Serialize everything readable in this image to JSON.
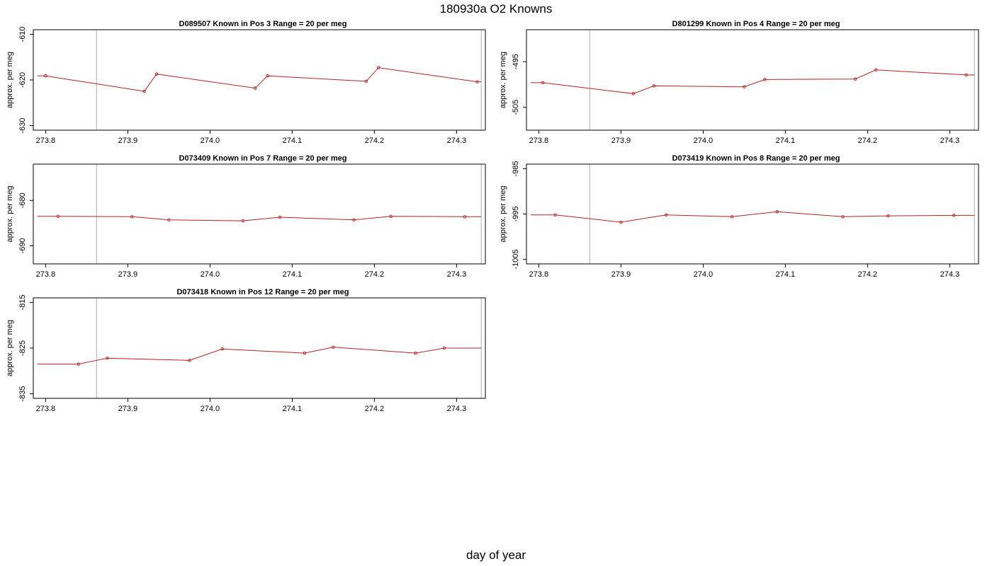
{
  "figure": {
    "title": "180930a   O2 Knowns",
    "xlabel": "day of year",
    "colors": {
      "series": "#b22222",
      "marker": "#b22222",
      "vline": "#bbbbbb",
      "axis": "#000000"
    }
  },
  "chart_data": [
    {
      "type": "line",
      "title": "D089507    Known in Pos 3          Range = 20 per meg",
      "ylabel": "approx. per meg",
      "xlim": [
        273.785,
        274.335
      ],
      "ylim": [
        -631,
        -609
      ],
      "xticks": [
        "273.8",
        "273.9",
        "274.0",
        "274.1",
        "274.2",
        "274.3"
      ],
      "yticks": [
        "-610",
        "-620",
        "-630"
      ],
      "vlines": [
        273.862,
        274.33
      ],
      "x": [
        273.79,
        273.8,
        273.92,
        273.935,
        274.055,
        274.07,
        274.19,
        274.205,
        274.325,
        274.33
      ],
      "y": [
        -619.1,
        -619.1,
        -622.5,
        -618.7,
        -621.8,
        -619.1,
        -620.3,
        -617.3,
        -620.4,
        -620.4
      ],
      "markers": [
        false,
        true,
        true,
        true,
        true,
        true,
        true,
        true,
        true,
        false
      ]
    },
    {
      "type": "line",
      "title": "D801299    Known in Pos 4          Range = 20 per meg",
      "ylabel": "approx. per meg",
      "xlim": [
        273.785,
        274.335
      ],
      "ylim": [
        -510,
        -488
      ],
      "xticks": [
        "273.8",
        "273.9",
        "274.0",
        "274.1",
        "274.2",
        "274.3"
      ],
      "yticks": [
        "-495",
        "-505"
      ],
      "vlines": [
        273.862,
        274.33
      ],
      "x": [
        273.79,
        273.805,
        273.915,
        273.94,
        274.05,
        274.075,
        274.185,
        274.21,
        274.32,
        274.33
      ],
      "y": [
        -499.6,
        -499.6,
        -502.0,
        -500.3,
        -500.5,
        -498.9,
        -498.8,
        -496.8,
        -497.9,
        -497.9
      ],
      "markers": [
        false,
        true,
        true,
        true,
        true,
        true,
        true,
        true,
        true,
        false
      ]
    },
    {
      "type": "line",
      "title": "D073409    Known in Pos 7          Range = 20 per meg",
      "ylabel": "approx. per meg",
      "xlim": [
        273.785,
        274.335
      ],
      "ylim": [
        -694,
        -672
      ],
      "xticks": [
        "273.8",
        "273.9",
        "274.0",
        "274.1",
        "274.2",
        "274.3"
      ],
      "yticks": [
        "-680",
        "-690"
      ],
      "vlines": [
        273.862,
        274.33
      ],
      "x": [
        273.79,
        273.815,
        273.905,
        273.95,
        274.04,
        274.085,
        274.175,
        274.22,
        274.31,
        274.33
      ],
      "y": [
        -683.5,
        -683.5,
        -683.6,
        -684.3,
        -684.5,
        -683.7,
        -684.3,
        -683.5,
        -683.6,
        -683.6
      ],
      "markers": [
        false,
        true,
        true,
        true,
        true,
        true,
        true,
        true,
        true,
        false
      ]
    },
    {
      "type": "line",
      "title": "D073419    Known in Pos 8          Range = 20 per meg",
      "ylabel": "approx. per meg",
      "xlim": [
        273.785,
        274.335
      ],
      "ylim": [
        -1006,
        -984
      ],
      "xticks": [
        "273.8",
        "273.9",
        "274.0",
        "274.1",
        "274.2",
        "274.3"
      ],
      "yticks": [
        "-985",
        "-995",
        "-1005"
      ],
      "vlines": [
        273.862,
        274.33
      ],
      "x": [
        273.79,
        273.82,
        273.9,
        273.955,
        274.035,
        274.09,
        274.17,
        274.225,
        274.305,
        274.33
      ],
      "y": [
        -995.2,
        -995.2,
        -996.8,
        -995.2,
        -995.6,
        -994.5,
        -995.6,
        -995.4,
        -995.3,
        -995.3
      ],
      "markers": [
        false,
        true,
        true,
        true,
        true,
        true,
        true,
        true,
        true,
        false
      ]
    },
    {
      "type": "line",
      "title": "D073418    Known in Pos 12          Range = 20 per meg",
      "ylabel": "approx. per meg",
      "xlim": [
        273.785,
        274.335
      ],
      "ylim": [
        -836,
        -814
      ],
      "xticks": [
        "273.8",
        "273.9",
        "274.0",
        "274.1",
        "274.2",
        "274.3"
      ],
      "yticks": [
        "-815",
        "-825",
        "-835"
      ],
      "vlines": [
        273.862,
        274.33
      ],
      "x": [
        273.79,
        273.84,
        273.875,
        273.975,
        274.015,
        274.115,
        274.15,
        274.25,
        274.285,
        274.33
      ],
      "y": [
        -828.5,
        -828.5,
        -827.2,
        -827.7,
        -825.2,
        -826.1,
        -824.8,
        -826.1,
        -825.0,
        -825.0
      ],
      "markers": [
        false,
        true,
        true,
        true,
        true,
        true,
        true,
        true,
        true,
        false
      ]
    }
  ]
}
